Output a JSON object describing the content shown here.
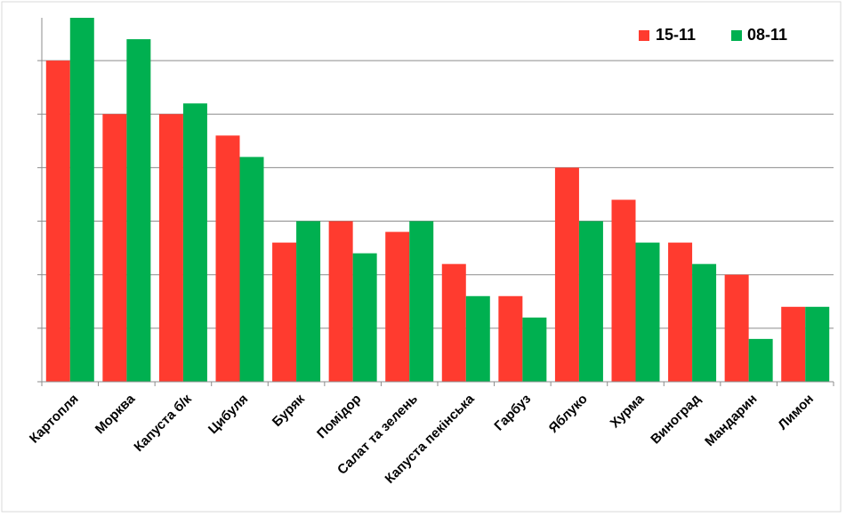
{
  "chart_data": {
    "type": "bar",
    "title": "",
    "xlabel": "",
    "ylabel": "",
    "ylim": [
      0,
      34
    ],
    "grid": true,
    "legend_position": "top-right",
    "categories": [
      "Картопля",
      "Морква",
      "Капуста б/к",
      "Цибуля",
      "Буряк",
      "Помідор",
      "Салат та зелень",
      "Капуста пекінська",
      "Гарбуз",
      "Яблуко",
      "Хурма",
      "Виноград",
      "Мандарин",
      "Лимон"
    ],
    "series": [
      {
        "name": "15-11",
        "color": "#ff3b2f",
        "values": [
          30,
          25,
          25,
          23,
          13,
          15,
          14,
          11,
          8,
          20,
          17,
          13,
          10,
          7
        ]
      },
      {
        "name": "08-11",
        "color": "#00b050",
        "values": [
          34,
          32,
          26,
          21,
          15,
          12,
          15,
          8,
          6,
          15,
          13,
          11,
          4,
          7
        ]
      }
    ]
  }
}
